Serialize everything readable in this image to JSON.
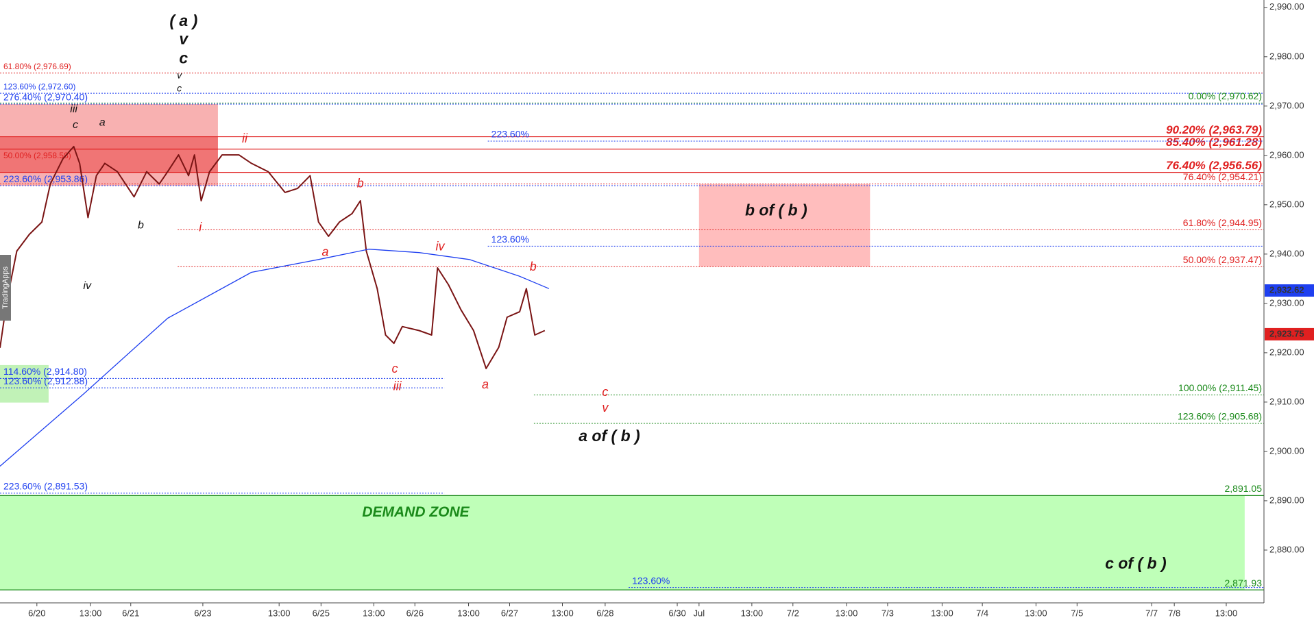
{
  "chart_data": {
    "type": "line",
    "watermark": "TradingApps",
    "xlim": [
      0,
      150.8
    ],
    "ylim": [
      2869.3,
      2991.5
    ],
    "xticks": [
      {
        "value": 4.4,
        "label": "6/20"
      },
      {
        "value": 10.8,
        "label": "13:00"
      },
      {
        "value": 15.6,
        "label": "6/21"
      },
      {
        "value": 24.2,
        "label": "6/23"
      },
      {
        "value": 33.3,
        "label": "13:00"
      },
      {
        "value": 38.3,
        "label": "6/25"
      },
      {
        "value": 44.6,
        "label": "13:00"
      },
      {
        "value": 49.5,
        "label": "6/26"
      },
      {
        "value": 55.9,
        "label": "13:00"
      },
      {
        "value": 60.8,
        "label": "6/27"
      },
      {
        "value": 67.1,
        "label": "13:00"
      },
      {
        "value": 72.2,
        "label": "6/28"
      },
      {
        "value": 80.8,
        "label": "6/30"
      },
      {
        "value": 83.4,
        "label": "Jul"
      },
      {
        "value": 89.7,
        "label": "13:00"
      },
      {
        "value": 94.6,
        "label": "7/2"
      },
      {
        "value": 101.0,
        "label": "13:00"
      },
      {
        "value": 105.9,
        "label": "7/3"
      },
      {
        "value": 112.4,
        "label": "13:00"
      },
      {
        "value": 117.2,
        "label": "7/4"
      },
      {
        "value": 123.6,
        "label": "13:00"
      },
      {
        "value": 128.5,
        "label": "7/5"
      },
      {
        "value": 137.4,
        "label": "7/7"
      },
      {
        "value": 140.1,
        "label": "7/8"
      },
      {
        "value": 146.3,
        "label": "13:00"
      }
    ],
    "yticks": [
      {
        "value": 2880,
        "label": "2,880.00"
      },
      {
        "value": 2890,
        "label": "2,890.00"
      },
      {
        "value": 2900,
        "label": "2,900.00"
      },
      {
        "value": 2910,
        "label": "2,910.00"
      },
      {
        "value": 2920,
        "label": "2,920.00"
      },
      {
        "value": 2930,
        "label": "2,930.00"
      },
      {
        "value": 2940,
        "label": "2,940.00"
      },
      {
        "value": 2950,
        "label": "2,950.00"
      },
      {
        "value": 2960,
        "label": "2,960.00"
      },
      {
        "value": 2970,
        "label": "2,970.00"
      },
      {
        "value": 2980,
        "label": "2,980.00"
      },
      {
        "value": 2990,
        "label": "2,990.00"
      }
    ],
    "series": [
      {
        "color": "#7a1414",
        "x": [
          0,
          0.8,
          2,
          3.5,
          5,
          6,
          7.5,
          8.8,
          9.5,
          10.5,
          11.5,
          12.5,
          14,
          16,
          17.5,
          19,
          20,
          21.3,
          22.5,
          23.2,
          24,
          25,
          26.5,
          28.5,
          30,
          32,
          34,
          35.5,
          37,
          38,
          39.2,
          40.5,
          42,
          43,
          43.7,
          45,
          46,
          47,
          48,
          50,
          51.5,
          52.2,
          53.5,
          55,
          56.5,
          58,
          59.5,
          60.5,
          62,
          62.8,
          63.8,
          65
        ],
        "values": [
          2921,
          2930.4,
          2940.6,
          2944,
          2946.5,
          2954.2,
          2959.3,
          2961.8,
          2958.4,
          2947.4,
          2955.9,
          2958.4,
          2956.7,
          2951.6,
          2956.7,
          2954.2,
          2956.7,
          2960.1,
          2955.9,
          2960.1,
          2950.8,
          2956.7,
          2960.1,
          2960.1,
          2958.4,
          2956.7,
          2952.5,
          2953.3,
          2955.9,
          2946.5,
          2943.6,
          2946.5,
          2948.2,
          2950.8,
          2940.6,
          2933,
          2923.6,
          2921.9,
          2925.3,
          2924.5,
          2923.6,
          2937.2,
          2933.8,
          2928.7,
          2924.5,
          2916.8,
          2921.1,
          2927.2,
          2928.3,
          2933,
          2923.6,
          2924.5
        ]
      },
      {
        "color": "#1e3ff0",
        "x": [
          0,
          10,
          20,
          30,
          38,
          44,
          50,
          56,
          62,
          65.5
        ],
        "values": [
          2897,
          2911.7,
          2927,
          2936.3,
          2938.9,
          2941,
          2940.3,
          2938.9,
          2935.5,
          2933
        ]
      }
    ],
    "price_tags": [
      {
        "value": 2932.62,
        "label": "2,932.62",
        "color": "#1e3ff0"
      },
      {
        "value": 2923.75,
        "label": "2,923.75",
        "color": "#e02020"
      }
    ],
    "zones": [
      {
        "top": 2970.4,
        "bottom": 2953.86,
        "x": [
          0,
          26
        ],
        "color": "#f7a3a3"
      },
      {
        "top": 2963.79,
        "bottom": 2956.56,
        "x": [
          0,
          26
        ],
        "color": "#ee6b6b"
      },
      {
        "top": 2954.21,
        "bottom": 2937.47,
        "x": [
          83.4,
          103.8
        ],
        "color": "#ffb1b1"
      },
      {
        "top": 2917.5,
        "bottom": 2909.9,
        "x": [
          0,
          5.8
        ],
        "color": "#b6f0aa"
      },
      {
        "top": 2891.05,
        "bottom": 2871.93,
        "x": [
          0,
          148.5
        ],
        "color": "#b4ffac"
      }
    ],
    "levels": [
      {
        "label": "61.80% (2,976.69)",
        "price": 2976.69,
        "color": "#e02020",
        "style": "dotted",
        "x": [
          0,
          150.8
        ],
        "side": "left",
        "size": "s"
      },
      {
        "label": "123.60% (2,972.60)",
        "price": 2972.6,
        "color": "#1e3ff0",
        "style": "dotted",
        "x": [
          0,
          150.8
        ],
        "side": "left",
        "size": "s"
      },
      {
        "label": "276.40% (2,970.40)",
        "price": 2970.4,
        "color": "#1e3ff0",
        "style": "dotted",
        "x": [
          0,
          150.8
        ],
        "side": "left",
        "size": "m"
      },
      {
        "label": "0.00% (2,970.62)",
        "price": 2970.62,
        "color": "#1a8a1a",
        "style": "dotted",
        "x": [
          0,
          150.8
        ],
        "side": "right",
        "size": "m"
      },
      {
        "label": "90.20% (2,963.79)",
        "price": 2963.79,
        "color": "#e02020",
        "style": "solid",
        "x": [
          0,
          150.8
        ],
        "side": "right",
        "size": "l"
      },
      {
        "label": "85.40% (2,961.28)",
        "price": 2961.28,
        "color": "#e02020",
        "style": "solid",
        "x": [
          0,
          150.8
        ],
        "side": "right",
        "size": "l"
      },
      {
        "label": "223.60%",
        "price": 2962.9,
        "color": "#1e3ff0",
        "style": "dotted",
        "x": [
          58.2,
          150.8
        ],
        "side": "left",
        "size": "m"
      },
      {
        "label": "76.40% (2,956.56)",
        "price": 2956.56,
        "color": "#e02020",
        "style": "solid",
        "x": [
          0,
          150.8
        ],
        "side": "right",
        "size": "l"
      },
      {
        "label": "50.00% (2,958.58)",
        "price": 2958.58,
        "color": "#e02020",
        "style": "none",
        "x": [
          0,
          26
        ],
        "side": "left",
        "size": "s"
      },
      {
        "label": "223.60% (2,953.86)",
        "price": 2953.86,
        "color": "#1e3ff0",
        "style": "dotted",
        "x": [
          0,
          150.8
        ],
        "side": "left",
        "size": "m"
      },
      {
        "label": "76.40% (2,954.21)",
        "price": 2954.21,
        "color": "#e02020",
        "style": "dotted",
        "x": [
          0,
          150.8
        ],
        "side": "right",
        "size": "m"
      },
      {
        "label": "61.80% (2,944.95)",
        "price": 2944.95,
        "color": "#e02020",
        "style": "dotted",
        "x": [
          21.2,
          150.8
        ],
        "side": "right",
        "size": "m"
      },
      {
        "label": "123.60%",
        "price": 2941.6,
        "color": "#1e3ff0",
        "style": "dotted",
        "x": [
          58.2,
          150.8
        ],
        "side": "left",
        "size": "m"
      },
      {
        "label": "50.00% (2,937.47)",
        "price": 2937.47,
        "color": "#e02020",
        "style": "dotted",
        "x": [
          21.2,
          150.8
        ],
        "side": "right",
        "size": "m"
      },
      {
        "label": "114.60% (2,914.80)",
        "price": 2914.8,
        "color": "#1e3ff0",
        "style": "dotted",
        "x": [
          0,
          53
        ],
        "side": "left",
        "size": "m"
      },
      {
        "label": "123.60% (2,912.88)",
        "price": 2912.88,
        "color": "#1e3ff0",
        "style": "dotted",
        "x": [
          0,
          53
        ],
        "side": "left",
        "size": "m"
      },
      {
        "label": "100.00% (2,911.45)",
        "price": 2911.45,
        "color": "#1a8a1a",
        "style": "dotted",
        "x": [
          63.7,
          150.8
        ],
        "side": "right",
        "size": "m"
      },
      {
        "label": "123.60% (2,905.68)",
        "price": 2905.68,
        "color": "#1a8a1a",
        "style": "dotted",
        "x": [
          63.7,
          150.8
        ],
        "side": "right",
        "size": "m"
      },
      {
        "label": "223.60% (2,891.53)",
        "price": 2891.53,
        "color": "#1e3ff0",
        "style": "dotted",
        "x": [
          0,
          53
        ],
        "side": "left",
        "size": "m"
      },
      {
        "label": "2,891.05",
        "price": 2891.05,
        "color": "#1a8a1a",
        "style": "solid",
        "x": [
          0,
          150.8
        ],
        "side": "right",
        "size": "m"
      },
      {
        "label": "123.60%",
        "price": 2872.4,
        "color": "#1e3ff0",
        "style": "dotted",
        "x": [
          75,
          150.8
        ],
        "side": "left",
        "size": "m"
      },
      {
        "label": "2,871.93",
        "price": 2871.93,
        "color": "#1a8a1a",
        "style": "solid",
        "x": [
          0,
          150.8
        ],
        "side": "right",
        "size": "m"
      }
    ],
    "annotations": [
      {
        "text": "( a )",
        "x": 21.9,
        "y": 2987.1,
        "kind": "major"
      },
      {
        "text": "v",
        "x": 21.9,
        "y": 2983.4,
        "kind": "major"
      },
      {
        "text": "c",
        "x": 21.9,
        "y": 2979.5,
        "kind": "major"
      },
      {
        "text": "v",
        "x": 21.4,
        "y": 2976.1,
        "kind": "tiny"
      },
      {
        "text": "c",
        "x": 21.4,
        "y": 2973.5,
        "kind": "tiny"
      },
      {
        "text": "iii",
        "x": 8.8,
        "y": 2969.3,
        "kind": "wave"
      },
      {
        "text": "c",
        "x": 9.0,
        "y": 2966.1,
        "kind": "wave"
      },
      {
        "text": "a",
        "x": 12.2,
        "y": 2966.6,
        "kind": "wave"
      },
      {
        "text": "b",
        "x": 16.8,
        "y": 2945.8,
        "kind": "wave"
      },
      {
        "text": "iv",
        "x": 10.4,
        "y": 2933.5,
        "kind": "wave"
      },
      {
        "text": "ii",
        "x": 29.2,
        "y": 2963.3,
        "kind": "red"
      },
      {
        "text": "i",
        "x": 23.9,
        "y": 2945.3,
        "kind": "red"
      },
      {
        "text": "b",
        "x": 43.0,
        "y": 2954.2,
        "kind": "red"
      },
      {
        "text": "a",
        "x": 38.8,
        "y": 2940.3,
        "kind": "red"
      },
      {
        "text": "iv",
        "x": 52.5,
        "y": 2941.4,
        "kind": "red"
      },
      {
        "text": "c",
        "x": 47.1,
        "y": 2916.6,
        "kind": "red"
      },
      {
        "text": "iii",
        "x": 47.4,
        "y": 2913.1,
        "kind": "red"
      },
      {
        "text": "a",
        "x": 57.9,
        "y": 2913.4,
        "kind": "red"
      },
      {
        "text": "b",
        "x": 63.6,
        "y": 2937.3,
        "kind": "red"
      },
      {
        "text": "c",
        "x": 72.2,
        "y": 2911.9,
        "kind": "red"
      },
      {
        "text": "v",
        "x": 72.2,
        "y": 2908.7,
        "kind": "red"
      },
      {
        "text": "a of ( b )",
        "x": 72.7,
        "y": 2902.9,
        "kind": "major"
      },
      {
        "text": "b of ( b )",
        "x": 92.6,
        "y": 2948.7,
        "kind": "major"
      },
      {
        "text": "c of ( b )",
        "x": 135.5,
        "y": 2877.1,
        "kind": "major"
      },
      {
        "text": "DEMAND ZONE",
        "x": 49.6,
        "y": 2887.6,
        "kind": "zone"
      }
    ]
  }
}
